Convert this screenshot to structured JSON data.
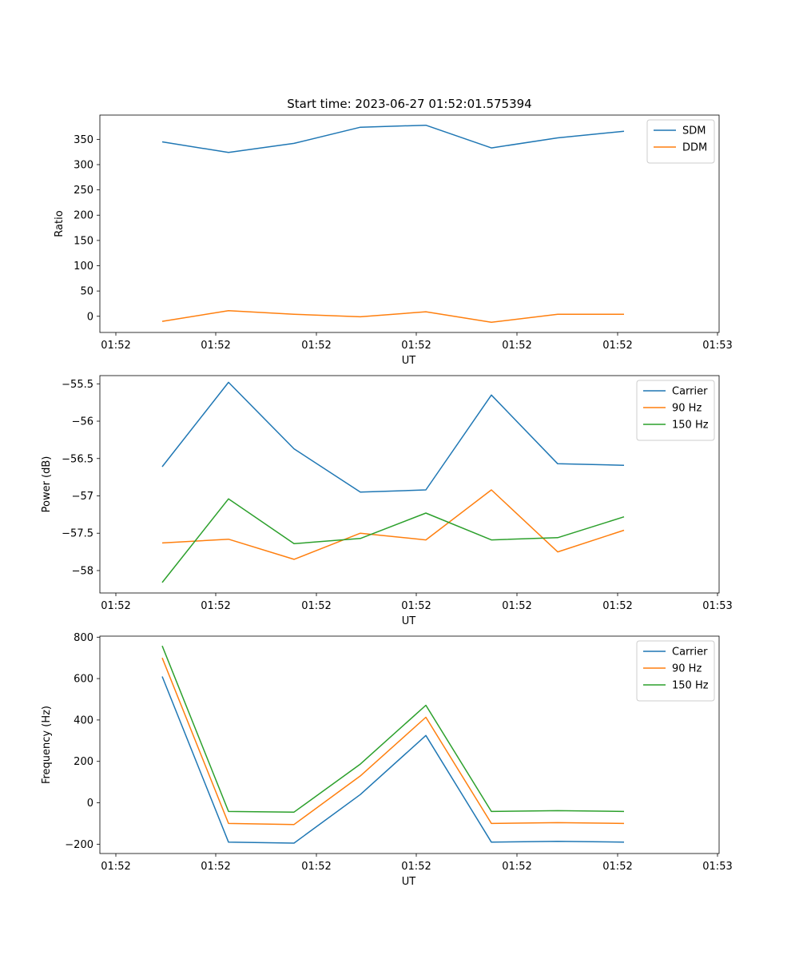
{
  "figure_title": "Start time: 2023-06-27 01:52:01.575394",
  "chart_data": [
    {
      "type": "line",
      "title": "Start time: 2023-06-27 01:52:01.575394",
      "xlabel": "UT",
      "ylabel": "Ratio",
      "x_tick_labels": [
        "01:52",
        "01:52",
        "01:52",
        "01:52",
        "01:52",
        "01:52",
        "01:53"
      ],
      "x_points": 8,
      "ylim": [
        -32,
        398
      ],
      "y_ticks": [
        0,
        50,
        100,
        150,
        200,
        250,
        300,
        350
      ],
      "legend_position": "top-right",
      "grid": false,
      "series": [
        {
          "name": "SDM",
          "color": "#1f77b4",
          "values": [
            345,
            324,
            342,
            374,
            378,
            333,
            353,
            366
          ]
        },
        {
          "name": "DDM",
          "color": "#ff7f0e",
          "values": [
            -10,
            11,
            4,
            -1,
            9,
            -12,
            4,
            4
          ]
        }
      ]
    },
    {
      "type": "line",
      "title": "",
      "xlabel": "UT",
      "ylabel": "Power (dB)",
      "x_tick_labels": [
        "01:52",
        "01:52",
        "01:52",
        "01:52",
        "01:52",
        "01:52",
        "01:53"
      ],
      "x_points": 8,
      "ylim": [
        -58.3,
        -55.39
      ],
      "y_ticks": [
        -58.0,
        -57.5,
        -57.0,
        -56.5,
        -56.0,
        -55.5
      ],
      "legend_position": "top-right",
      "grid": false,
      "series": [
        {
          "name": "Carrier",
          "color": "#1f77b4",
          "values": [
            -56.61,
            -55.48,
            -56.37,
            -56.95,
            -56.92,
            -55.65,
            -56.57,
            -56.59
          ]
        },
        {
          "name": "90 Hz",
          "color": "#ff7f0e",
          "values": [
            -57.63,
            -57.58,
            -57.85,
            -57.5,
            -57.59,
            -56.92,
            -57.75,
            -57.46
          ]
        },
        {
          "name": "150 Hz",
          "color": "#2ca02c",
          "values": [
            -58.16,
            -57.04,
            -57.64,
            -57.57,
            -57.23,
            -57.59,
            -57.56,
            -57.28
          ]
        }
      ]
    },
    {
      "type": "line",
      "title": "",
      "xlabel": "UT",
      "ylabel": "Frequency (Hz)",
      "x_tick_labels": [
        "01:52",
        "01:52",
        "01:52",
        "01:52",
        "01:52",
        "01:52",
        "01:53"
      ],
      "x_points": 8,
      "ylim": [
        -245,
        805
      ],
      "y_ticks": [
        -200,
        0,
        200,
        400,
        600,
        800
      ],
      "legend_position": "top-right",
      "grid": false,
      "series": [
        {
          "name": "Carrier",
          "color": "#1f77b4",
          "values": [
            610,
            -190,
            -195,
            40,
            325,
            -190,
            -186,
            -190
          ]
        },
        {
          "name": "90 Hz",
          "color": "#ff7f0e",
          "values": [
            700,
            -100,
            -105,
            130,
            413,
            -100,
            -96,
            -100
          ]
        },
        {
          "name": "150 Hz",
          "color": "#2ca02c",
          "values": [
            758,
            -42,
            -45,
            187,
            471,
            -42,
            -38,
            -42
          ]
        }
      ]
    }
  ]
}
